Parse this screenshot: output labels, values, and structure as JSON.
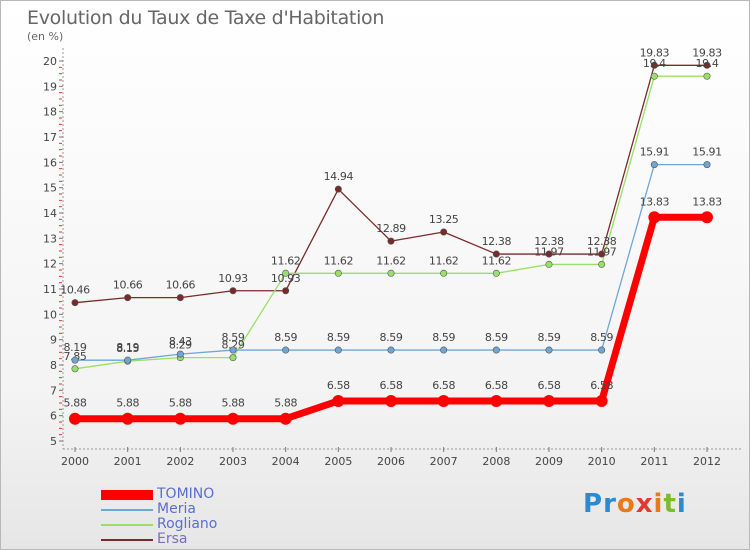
{
  "title": "Evolution du Taux de Taxe d'Habitation",
  "subtitle": "(en %)",
  "logo": {
    "letters": [
      "P",
      "r",
      "o",
      "x",
      "i",
      "t",
      "i"
    ],
    "colors": [
      "#2a8bd1",
      "#2a8bd1",
      "#e87a1e",
      "#e23a2c",
      "#e87a1e",
      "#7cbc2a",
      "#2a8bd1"
    ]
  },
  "chart_data": {
    "type": "line",
    "title": "Evolution du Taux de Taxe d'Habitation",
    "ylabel": "(en %)",
    "ylim": [
      5,
      20
    ],
    "grid": false,
    "legend_position": "bottom-left",
    "x": [
      "2000",
      "2001",
      "2002",
      "2003",
      "2004",
      "2005",
      "2006",
      "2007",
      "2008",
      "2009",
      "2010",
      "2011",
      "2012"
    ],
    "y_ticks": [
      "5",
      "6",
      "7",
      "8",
      "9",
      "10",
      "11",
      "12",
      "13",
      "14",
      "15",
      "16",
      "17",
      "18",
      "19",
      "20"
    ],
    "series": [
      {
        "name": "TOMINO",
        "color": "#ff0000",
        "width": 7,
        "values": [
          5.88,
          5.88,
          5.88,
          5.88,
          5.88,
          6.58,
          6.58,
          6.58,
          6.58,
          6.58,
          6.58,
          13.83,
          13.83
        ],
        "labels": [
          "5.88",
          "5.88",
          "5.88",
          "5.88",
          "5.88",
          "6.58",
          "6.58",
          "6.58",
          "6.58",
          "6.58",
          "6.58",
          "13.83",
          "13.83"
        ]
      },
      {
        "name": "Meria",
        "color": "#6ea6d6",
        "width": 1.3,
        "values": [
          8.19,
          8.19,
          8.43,
          8.59,
          8.59,
          8.59,
          8.59,
          8.59,
          8.59,
          8.59,
          8.59,
          15.91,
          15.91
        ],
        "labels": [
          "8.19",
          "8.19",
          "8.43",
          "8.59",
          "8.59",
          "8.59",
          "8.59",
          "8.59",
          "8.59",
          "8.59",
          "8.59",
          "15.91",
          "15.91"
        ]
      },
      {
        "name": "Rogliano",
        "color": "#99e06a",
        "width": 1.3,
        "values": [
          7.85,
          8.15,
          8.29,
          8.29,
          11.62,
          11.62,
          11.62,
          11.62,
          11.62,
          11.97,
          11.97,
          19.4,
          19.4
        ],
        "labels": [
          "7.85",
          "8.15",
          "8.29",
          "8.29",
          "11.62",
          "11.62",
          "11.62",
          "11.62",
          "11.62",
          "11.97",
          "11.97",
          "19.4",
          "19.4"
        ]
      },
      {
        "name": "Ersa",
        "color": "#7a2a2a",
        "width": 1.3,
        "values": [
          10.46,
          10.66,
          10.66,
          10.93,
          10.93,
          14.94,
          12.89,
          13.25,
          12.38,
          12.38,
          12.38,
          19.83,
          19.83
        ],
        "labels": [
          "10.46",
          "10.66",
          "10.66",
          "10.93",
          "10.93",
          "14.94",
          "12.89",
          "13.25",
          "12.38",
          "12.38",
          "12.38",
          "19.83",
          "19.83"
        ]
      }
    ]
  }
}
